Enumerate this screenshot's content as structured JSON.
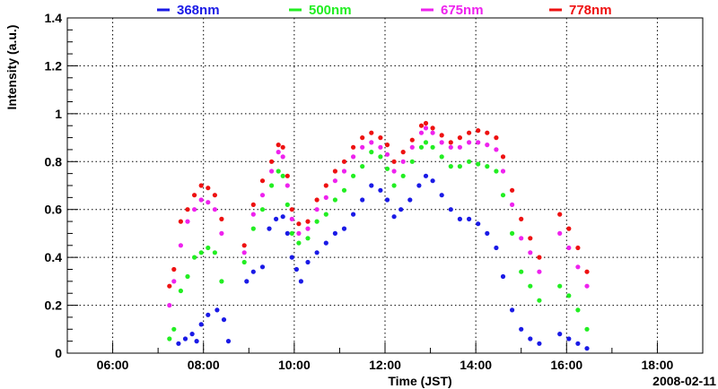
{
  "chart_data": {
    "type": "scatter",
    "title": "",
    "xlabel": "Time (JST)",
    "ylabel": "Intensity (a.u.)",
    "date_label": "2008-02-11",
    "x_unit": "hours (JST)",
    "xlim": [
      5.0,
      19.0
    ],
    "ylim": [
      0,
      1.4
    ],
    "x_ticks": [
      "06:00",
      "08:00",
      "10:00",
      "12:00",
      "14:00",
      "16:00",
      "18:00"
    ],
    "y_ticks": [
      "0",
      "0.2",
      "0.4",
      "0.6",
      "0.8",
      "1",
      "1.2",
      "1.4"
    ],
    "grid": true,
    "legend_position": "top",
    "series": [
      {
        "name": "368nm",
        "color": "#1a1ae6",
        "points": [
          [
            7.45,
            0.04
          ],
          [
            7.6,
            0.06
          ],
          [
            7.75,
            0.08
          ],
          [
            7.85,
            0.05
          ],
          [
            7.95,
            0.12
          ],
          [
            8.1,
            0.16
          ],
          [
            8.3,
            0.18
          ],
          [
            8.45,
            0.14
          ],
          [
            8.55,
            0.05
          ],
          [
            8.95,
            0.3
          ],
          [
            9.1,
            0.34
          ],
          [
            9.3,
            0.36
          ],
          [
            9.45,
            0.52
          ],
          [
            9.6,
            0.56
          ],
          [
            9.75,
            0.57
          ],
          [
            9.85,
            0.5
          ],
          [
            9.95,
            0.4
          ],
          [
            10.05,
            0.35
          ],
          [
            10.15,
            0.3
          ],
          [
            10.3,
            0.38
          ],
          [
            10.5,
            0.42
          ],
          [
            10.7,
            0.46
          ],
          [
            10.9,
            0.5
          ],
          [
            11.1,
            0.52
          ],
          [
            11.3,
            0.58
          ],
          [
            11.5,
            0.64
          ],
          [
            11.7,
            0.7
          ],
          [
            11.9,
            0.68
          ],
          [
            12.05,
            0.64
          ],
          [
            12.2,
            0.57
          ],
          [
            12.35,
            0.6
          ],
          [
            12.55,
            0.64
          ],
          [
            12.75,
            0.7
          ],
          [
            12.9,
            0.74
          ],
          [
            13.05,
            0.72
          ],
          [
            13.25,
            0.66
          ],
          [
            13.45,
            0.6
          ],
          [
            13.65,
            0.56
          ],
          [
            13.85,
            0.56
          ],
          [
            14.05,
            0.54
          ],
          [
            14.25,
            0.5
          ],
          [
            14.45,
            0.44
          ],
          [
            14.6,
            0.32
          ],
          [
            14.8,
            0.18
          ],
          [
            15.0,
            0.1
          ],
          [
            15.2,
            0.06
          ],
          [
            15.4,
            0.04
          ],
          [
            15.85,
            0.08
          ],
          [
            16.05,
            0.06
          ],
          [
            16.25,
            0.04
          ],
          [
            16.45,
            0.02
          ]
        ]
      },
      {
        "name": "500nm",
        "color": "#22ee22",
        "points": [
          [
            7.25,
            0.06
          ],
          [
            7.35,
            0.1
          ],
          [
            7.5,
            0.26
          ],
          [
            7.65,
            0.32
          ],
          [
            7.8,
            0.4
          ],
          [
            7.95,
            0.42
          ],
          [
            8.1,
            0.44
          ],
          [
            8.25,
            0.42
          ],
          [
            8.4,
            0.3
          ],
          [
            8.9,
            0.38
          ],
          [
            9.1,
            0.52
          ],
          [
            9.3,
            0.6
          ],
          [
            9.5,
            0.7
          ],
          [
            9.65,
            0.76
          ],
          [
            9.75,
            0.74
          ],
          [
            9.85,
            0.62
          ],
          [
            9.95,
            0.5
          ],
          [
            10.1,
            0.46
          ],
          [
            10.3,
            0.48
          ],
          [
            10.5,
            0.55
          ],
          [
            10.7,
            0.58
          ],
          [
            10.9,
            0.64
          ],
          [
            11.1,
            0.68
          ],
          [
            11.3,
            0.74
          ],
          [
            11.5,
            0.78
          ],
          [
            11.7,
            0.84
          ],
          [
            11.9,
            0.82
          ],
          [
            12.05,
            0.77
          ],
          [
            12.2,
            0.7
          ],
          [
            12.4,
            0.74
          ],
          [
            12.6,
            0.8
          ],
          [
            12.8,
            0.86
          ],
          [
            12.9,
            0.88
          ],
          [
            13.05,
            0.86
          ],
          [
            13.25,
            0.82
          ],
          [
            13.45,
            0.78
          ],
          [
            13.65,
            0.78
          ],
          [
            13.85,
            0.8
          ],
          [
            14.05,
            0.79
          ],
          [
            14.25,
            0.78
          ],
          [
            14.45,
            0.76
          ],
          [
            14.6,
            0.66
          ],
          [
            14.8,
            0.5
          ],
          [
            15.0,
            0.34
          ],
          [
            15.2,
            0.28
          ],
          [
            15.4,
            0.22
          ],
          [
            15.85,
            0.28
          ],
          [
            16.05,
            0.24
          ],
          [
            16.25,
            0.18
          ],
          [
            16.45,
            0.1
          ]
        ]
      },
      {
        "name": "675nm",
        "color": "#ee22ee",
        "points": [
          [
            7.25,
            0.2
          ],
          [
            7.35,
            0.3
          ],
          [
            7.5,
            0.45
          ],
          [
            7.65,
            0.55
          ],
          [
            7.8,
            0.6
          ],
          [
            7.95,
            0.64
          ],
          [
            8.1,
            0.63
          ],
          [
            8.25,
            0.6
          ],
          [
            8.4,
            0.5
          ],
          [
            8.9,
            0.42
          ],
          [
            9.1,
            0.58
          ],
          [
            9.3,
            0.66
          ],
          [
            9.5,
            0.76
          ],
          [
            9.65,
            0.84
          ],
          [
            9.75,
            0.82
          ],
          [
            9.85,
            0.7
          ],
          [
            9.95,
            0.56
          ],
          [
            10.1,
            0.5
          ],
          [
            10.3,
            0.52
          ],
          [
            10.5,
            0.6
          ],
          [
            10.7,
            0.65
          ],
          [
            10.9,
            0.72
          ],
          [
            11.1,
            0.76
          ],
          [
            11.3,
            0.82
          ],
          [
            11.5,
            0.86
          ],
          [
            11.7,
            0.88
          ],
          [
            11.9,
            0.86
          ],
          [
            12.05,
            0.83
          ],
          [
            12.2,
            0.76
          ],
          [
            12.4,
            0.8
          ],
          [
            12.6,
            0.86
          ],
          [
            12.8,
            0.92
          ],
          [
            12.9,
            0.94
          ],
          [
            13.05,
            0.92
          ],
          [
            13.25,
            0.88
          ],
          [
            13.45,
            0.86
          ],
          [
            13.65,
            0.86
          ],
          [
            13.85,
            0.88
          ],
          [
            14.05,
            0.88
          ],
          [
            14.25,
            0.87
          ],
          [
            14.45,
            0.85
          ],
          [
            14.6,
            0.76
          ],
          [
            14.8,
            0.62
          ],
          [
            15.0,
            0.48
          ],
          [
            15.2,
            0.42
          ],
          [
            15.4,
            0.34
          ],
          [
            15.85,
            0.5
          ],
          [
            16.05,
            0.44
          ],
          [
            16.25,
            0.36
          ],
          [
            16.45,
            0.28
          ]
        ]
      },
      {
        "name": "778nm",
        "color": "#ee1111",
        "points": [
          [
            7.25,
            0.28
          ],
          [
            7.35,
            0.35
          ],
          [
            7.5,
            0.55
          ],
          [
            7.65,
            0.6
          ],
          [
            7.8,
            0.66
          ],
          [
            7.95,
            0.7
          ],
          [
            8.1,
            0.69
          ],
          [
            8.25,
            0.66
          ],
          [
            8.4,
            0.56
          ],
          [
            8.9,
            0.45
          ],
          [
            9.1,
            0.62
          ],
          [
            9.3,
            0.72
          ],
          [
            9.5,
            0.8
          ],
          [
            9.65,
            0.87
          ],
          [
            9.75,
            0.86
          ],
          [
            9.85,
            0.74
          ],
          [
            9.95,
            0.6
          ],
          [
            10.1,
            0.54
          ],
          [
            10.3,
            0.55
          ],
          [
            10.5,
            0.64
          ],
          [
            10.7,
            0.7
          ],
          [
            10.9,
            0.76
          ],
          [
            11.1,
            0.8
          ],
          [
            11.3,
            0.86
          ],
          [
            11.5,
            0.9
          ],
          [
            11.7,
            0.92
          ],
          [
            11.9,
            0.9
          ],
          [
            12.05,
            0.87
          ],
          [
            12.2,
            0.8
          ],
          [
            12.4,
            0.84
          ],
          [
            12.6,
            0.89
          ],
          [
            12.8,
            0.95
          ],
          [
            12.9,
            0.96
          ],
          [
            13.05,
            0.94
          ],
          [
            13.25,
            0.91
          ],
          [
            13.45,
            0.88
          ],
          [
            13.65,
            0.9
          ],
          [
            13.85,
            0.92
          ],
          [
            14.05,
            0.93
          ],
          [
            14.25,
            0.92
          ],
          [
            14.45,
            0.9
          ],
          [
            14.6,
            0.82
          ],
          [
            14.8,
            0.68
          ],
          [
            15.0,
            0.56
          ],
          [
            15.2,
            0.48
          ],
          [
            15.4,
            0.4
          ],
          [
            15.85,
            0.58
          ],
          [
            16.05,
            0.52
          ],
          [
            16.25,
            0.44
          ],
          [
            16.45,
            0.34
          ]
        ]
      }
    ]
  }
}
